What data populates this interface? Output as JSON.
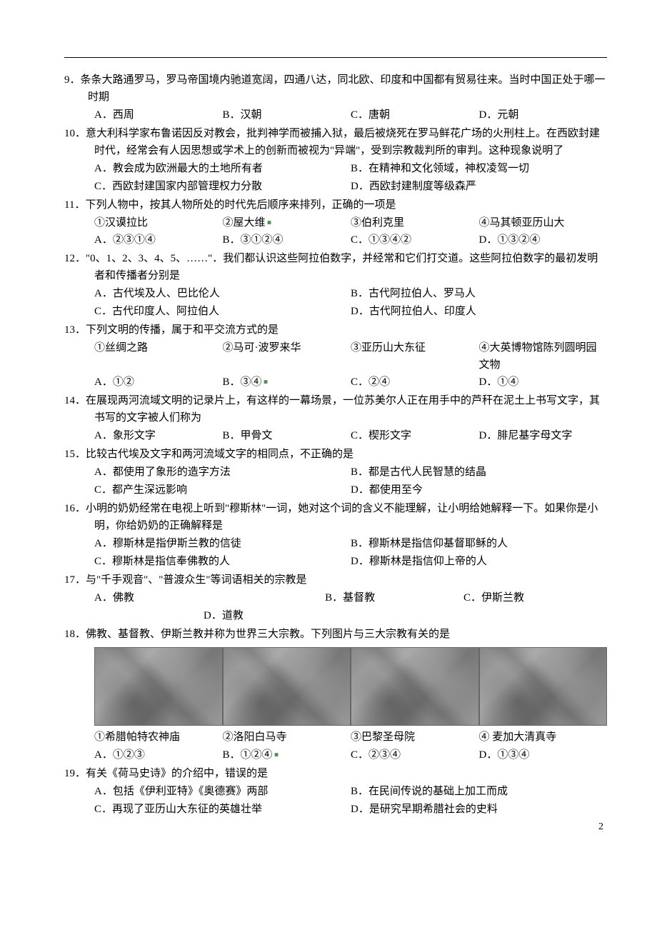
{
  "page_number": "2",
  "questions": [
    {
      "num": "9",
      "stem": "条条大路通罗马，罗马帝国境内驰道宽阔，四通八达，同北欧、印度和中国都有贸易往来。当时中国正处于哪一时期",
      "opts": [
        "A．西周",
        "B．汉朝",
        "C．唐朝",
        "D．元朝"
      ],
      "layout": "four"
    },
    {
      "num": "10",
      "stem": "意大利科学家布鲁诺因反对教会，批判神学而被捕入狱，最后被烧死在罗马鲜花广场的火刑柱上。在西欧封建时代，经常会有人因思想或学术上的创新而被视为\"异端\"，受到宗教裁判所的审判。这种现象说明了",
      "opts": [
        "A．教会成为欧洲最大的土地所有者",
        "B．在精神和文化领域，神权凌驾一切",
        "C．西欧封建国家内部管理权力分散",
        "D．西欧封建制度等级森严"
      ],
      "layout": "two"
    },
    {
      "num": "11",
      "stem": "下列人物中，按其人物所处的时代先后顺序来排列，正确的一项是",
      "circled": [
        "①汉谟拉比",
        "②屋大维",
        "③伯利克里",
        "④马其顿亚历山大"
      ],
      "circled_dot_after": 1,
      "opts": [
        "A．②③①④",
        "B．③①②④",
        "C．①③④②",
        "D．①③②④"
      ],
      "layout": "four"
    },
    {
      "num": "12",
      "stem": "\"0、1、2、3、4、5、……\"．我们都认识这些阿拉伯数字，并经常和它们打交道。这些阿拉伯数字的最初发明者和传播者分别是",
      "opts": [
        "A．古代埃及人、巴比伦人",
        "B．古代阿拉伯人、罗马人",
        "C．古代印度人、阿拉伯人",
        "D．古代阿拉伯人、印度人"
      ],
      "layout": "two"
    },
    {
      "num": "13",
      "stem": "下列文明的传播，属于和平交流方式的是",
      "circled": [
        "①丝绸之路",
        "②马可·波罗来华",
        "③亚历山大东征",
        "④大英博物馆陈列圆明园文物"
      ],
      "opts": [
        "A．①②",
        "B．③④",
        "C．②④",
        "D．①④"
      ],
      "opts_dot_after": 1,
      "layout": "four"
    },
    {
      "num": "14",
      "stem": "在展现两河流域文明的记录片上，有这样的一幕场景，一位苏美尔人正在用手中的芦秆在泥土上书写文字，其书写的文字被人们称为",
      "opts": [
        "A．象形文字",
        "B．甲骨文",
        "C．楔形文字",
        "D．腓尼基字母文字"
      ],
      "layout": "four"
    },
    {
      "num": "15",
      "stem": "比较古代埃及文字和两河流域文字的相同点，不正确的是",
      "opts": [
        "A．都使用了象形的造字方法",
        "B．都是古代人民智慧的结晶",
        "C．都产生深远影响",
        "D．都使用至今"
      ],
      "layout": "two"
    },
    {
      "num": "16",
      "stem": "小明的奶奶经常在电视上听到\"穆斯林\"一词，她对这个词的含义不能理解，让小明给她解释一下。如果你是小明，你给奶奶的正确解释是",
      "opts": [
        "A．穆斯林是指伊斯兰教的信徒",
        "B．穆斯林是指信仰基督耶稣的人",
        "C．穆斯林是指信奉佛教的人",
        "D．穆斯林是指信仰上帝的人"
      ],
      "layout": "two"
    },
    {
      "num": "17",
      "stem": "与\"千手观音\"、\"普渡众生\"等词语相关的宗教是",
      "opts": [
        "A．佛教",
        "B．基督教",
        "C．伊斯兰教"
      ],
      "extra_opt": "D．道教",
      "layout": "three-then-one"
    },
    {
      "num": "18",
      "stem": "佛教、基督教、伊斯兰教并称为世界三大宗教。下列图片与三大宗教有关的是",
      "has_images": true,
      "image_labels": [
        "①希腊帕特农神庙",
        "②洛阳白马寺",
        "③巴黎圣母院",
        "④ 麦加大清真寺"
      ],
      "opts": [
        "A．①②③",
        "B．①②④",
        "C．②③④",
        "D．①③④"
      ],
      "opts_dot_after": 1,
      "layout": "four"
    },
    {
      "num": "19",
      "stem": "有关《荷马史诗》的介绍中，错误的是",
      "opts": [
        "A．包括《伊利亚特》《奥德赛》两部",
        "B．在民间传说的基础上加工而成",
        "C．再现了亚历山大东征的英雄壮举",
        "D．是研究早期希腊社会的史料"
      ],
      "layout": "two"
    }
  ]
}
